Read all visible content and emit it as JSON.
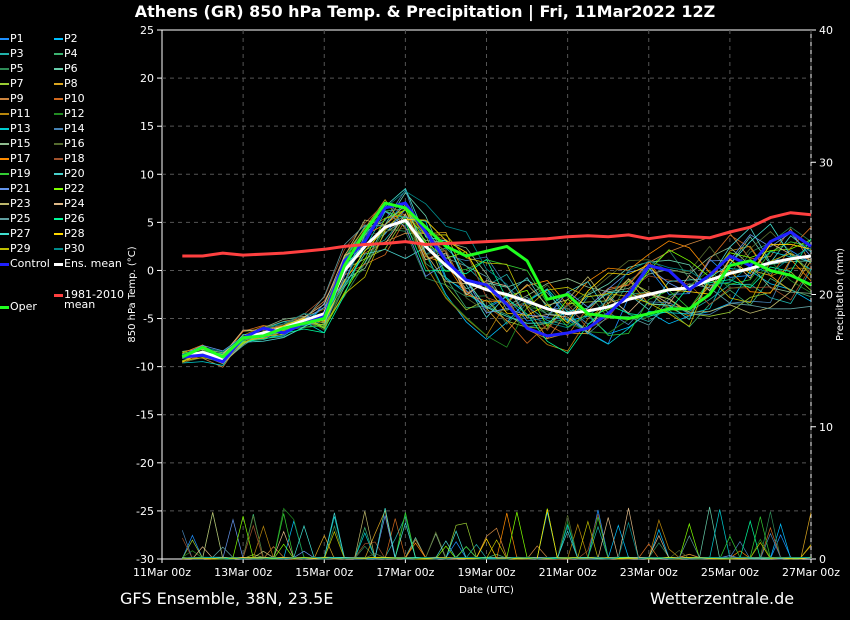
{
  "title": "Athens  (GR)  850 hPa Temp. & Precipitation | Fri, 11Mar2022 12Z",
  "footer": {
    "left": "GFS Ensemble, 38N, 23.5E",
    "right": "Wetterzentrale.de"
  },
  "chart_data": {
    "type": "line",
    "title": "Athens  (GR)  850 hPa Temp. & Precipitation | Fri, 11Mar2022 12Z",
    "xlabel": "Date (UTC)",
    "ylabel": "850 hPa Temp. (°C)",
    "y2label": "Precipitation (mm)",
    "x_ticks": [
      "11Mar 00z",
      "13Mar 00z",
      "15Mar 00z",
      "17Mar 00z",
      "19Mar 00z",
      "21Mar 00z",
      "23Mar 00z",
      "25Mar 00z",
      "27Mar 00z"
    ],
    "x_range_days": [
      0,
      16
    ],
    "ylim": [
      -30,
      25
    ],
    "y_ticks": [
      25,
      20,
      15,
      10,
      5,
      0,
      -5,
      -10,
      -15,
      -20,
      -25,
      -30
    ],
    "y2lim": [
      0,
      40
    ],
    "y2_ticks": [
      40,
      30,
      20,
      10,
      0
    ],
    "grid": true,
    "legend_placement": "left",
    "legend_left": [
      "P1",
      "P3",
      "P5",
      "P7",
      "P9",
      "P11",
      "P13",
      "P15",
      "P17",
      "P19",
      "P21",
      "P23",
      "P25",
      "P27",
      "P29",
      "Control"
    ],
    "legend_right": [
      "P2",
      "P4",
      "P6",
      "P8",
      "P10",
      "P12",
      "P14",
      "P16",
      "P18",
      "P20",
      "P22",
      "P24",
      "P26",
      "P28",
      "P30",
      "Ens. mean"
    ],
    "legend_extra": [
      {
        "label": "1981-2010 mean",
        "line1": "1981-2010",
        "line2": "mean",
        "color": "#ff4040"
      },
      {
        "label": "Oper",
        "color": "#20ff20"
      }
    ],
    "series": [
      {
        "name": "Ens. mean",
        "color": "#ffffff",
        "x": [
          0.5,
          1,
          1.5,
          2,
          2.5,
          3,
          3.5,
          4,
          4.5,
          5,
          5.5,
          6,
          6.5,
          7,
          7.5,
          8,
          8.5,
          9,
          9.5,
          10,
          10.5,
          11,
          11.5,
          12,
          12.5,
          13,
          13.5,
          14,
          14.5,
          15,
          15.5,
          16
        ],
        "values": [
          -9,
          -8.5,
          -9.2,
          -7,
          -6.5,
          -6,
          -5.2,
          -4.5,
          0,
          2.5,
          4.5,
          5.2,
          2.5,
          0.5,
          -1.2,
          -2,
          -2.5,
          -3.2,
          -4,
          -4.5,
          -4.2,
          -3.8,
          -3,
          -2.5,
          -2,
          -1.8,
          -1,
          -0.3,
          0.2,
          0.8,
          1.2,
          1.5
        ]
      },
      {
        "name": "Control",
        "color": "#2020ff",
        "x": [
          0.5,
          1,
          1.5,
          2,
          2.5,
          3,
          3.5,
          4,
          4.5,
          5,
          5.5,
          6,
          6.5,
          7,
          7.5,
          8,
          8.5,
          9,
          9.5,
          10,
          10.5,
          11,
          11.5,
          12,
          12.5,
          13,
          13.5,
          14,
          14.5,
          15,
          15.5,
          16
        ],
        "values": [
          -9,
          -8.8,
          -9.5,
          -7,
          -6,
          -6.5,
          -5.5,
          -4.8,
          1,
          3,
          6.5,
          7,
          4,
          1,
          -1,
          -1.5,
          -3.5,
          -6,
          -6.8,
          -6.5,
          -6,
          -4.5,
          -2.5,
          0.5,
          0,
          -2,
          -0.5,
          1.5,
          0.5,
          3,
          4,
          2.5
        ]
      },
      {
        "name": "Oper",
        "color": "#20ff20",
        "x": [
          0.5,
          1,
          1.5,
          2,
          2.5,
          3,
          3.5,
          4,
          4.5,
          5,
          5.5,
          6,
          6.5,
          7,
          7.5,
          8,
          8.5,
          9,
          9.5,
          10,
          10.5,
          11,
          11.5,
          12,
          12.5,
          13,
          13.5,
          14,
          14.5,
          15,
          15.5,
          16
        ],
        "values": [
          -9,
          -8,
          -9,
          -7,
          -6.8,
          -6,
          -5.5,
          -5,
          0.5,
          4,
          7,
          6.5,
          4.5,
          2.5,
          1.5,
          2,
          2.5,
          1,
          -3,
          -2.5,
          -4.5,
          -4.8,
          -5,
          -4.5,
          -4,
          -4,
          -2.5,
          0.5,
          1,
          0,
          -0.5,
          -1.5
        ]
      },
      {
        "name": "1981-2010 mean",
        "color": "#ff4040",
        "x": [
          0.5,
          1,
          1.5,
          2,
          2.5,
          3,
          3.5,
          4,
          4.5,
          5,
          5.5,
          6,
          6.5,
          7,
          7.5,
          8,
          8.5,
          9,
          9.5,
          10,
          10.5,
          11,
          11.5,
          12,
          12.5,
          13,
          13.5,
          14,
          14.5,
          15,
          15.5,
          16
        ],
        "values": [
          1.5,
          1.5,
          1.8,
          1.6,
          1.7,
          1.8,
          2,
          2.2,
          2.5,
          2.7,
          2.8,
          3,
          2.7,
          2.8,
          2.9,
          3,
          3.1,
          3.2,
          3.3,
          3.5,
          3.6,
          3.5,
          3.7,
          3.3,
          3.6,
          3.5,
          3.4,
          4,
          4.5,
          5.5,
          6,
          5.8
        ]
      }
    ]
  }
}
